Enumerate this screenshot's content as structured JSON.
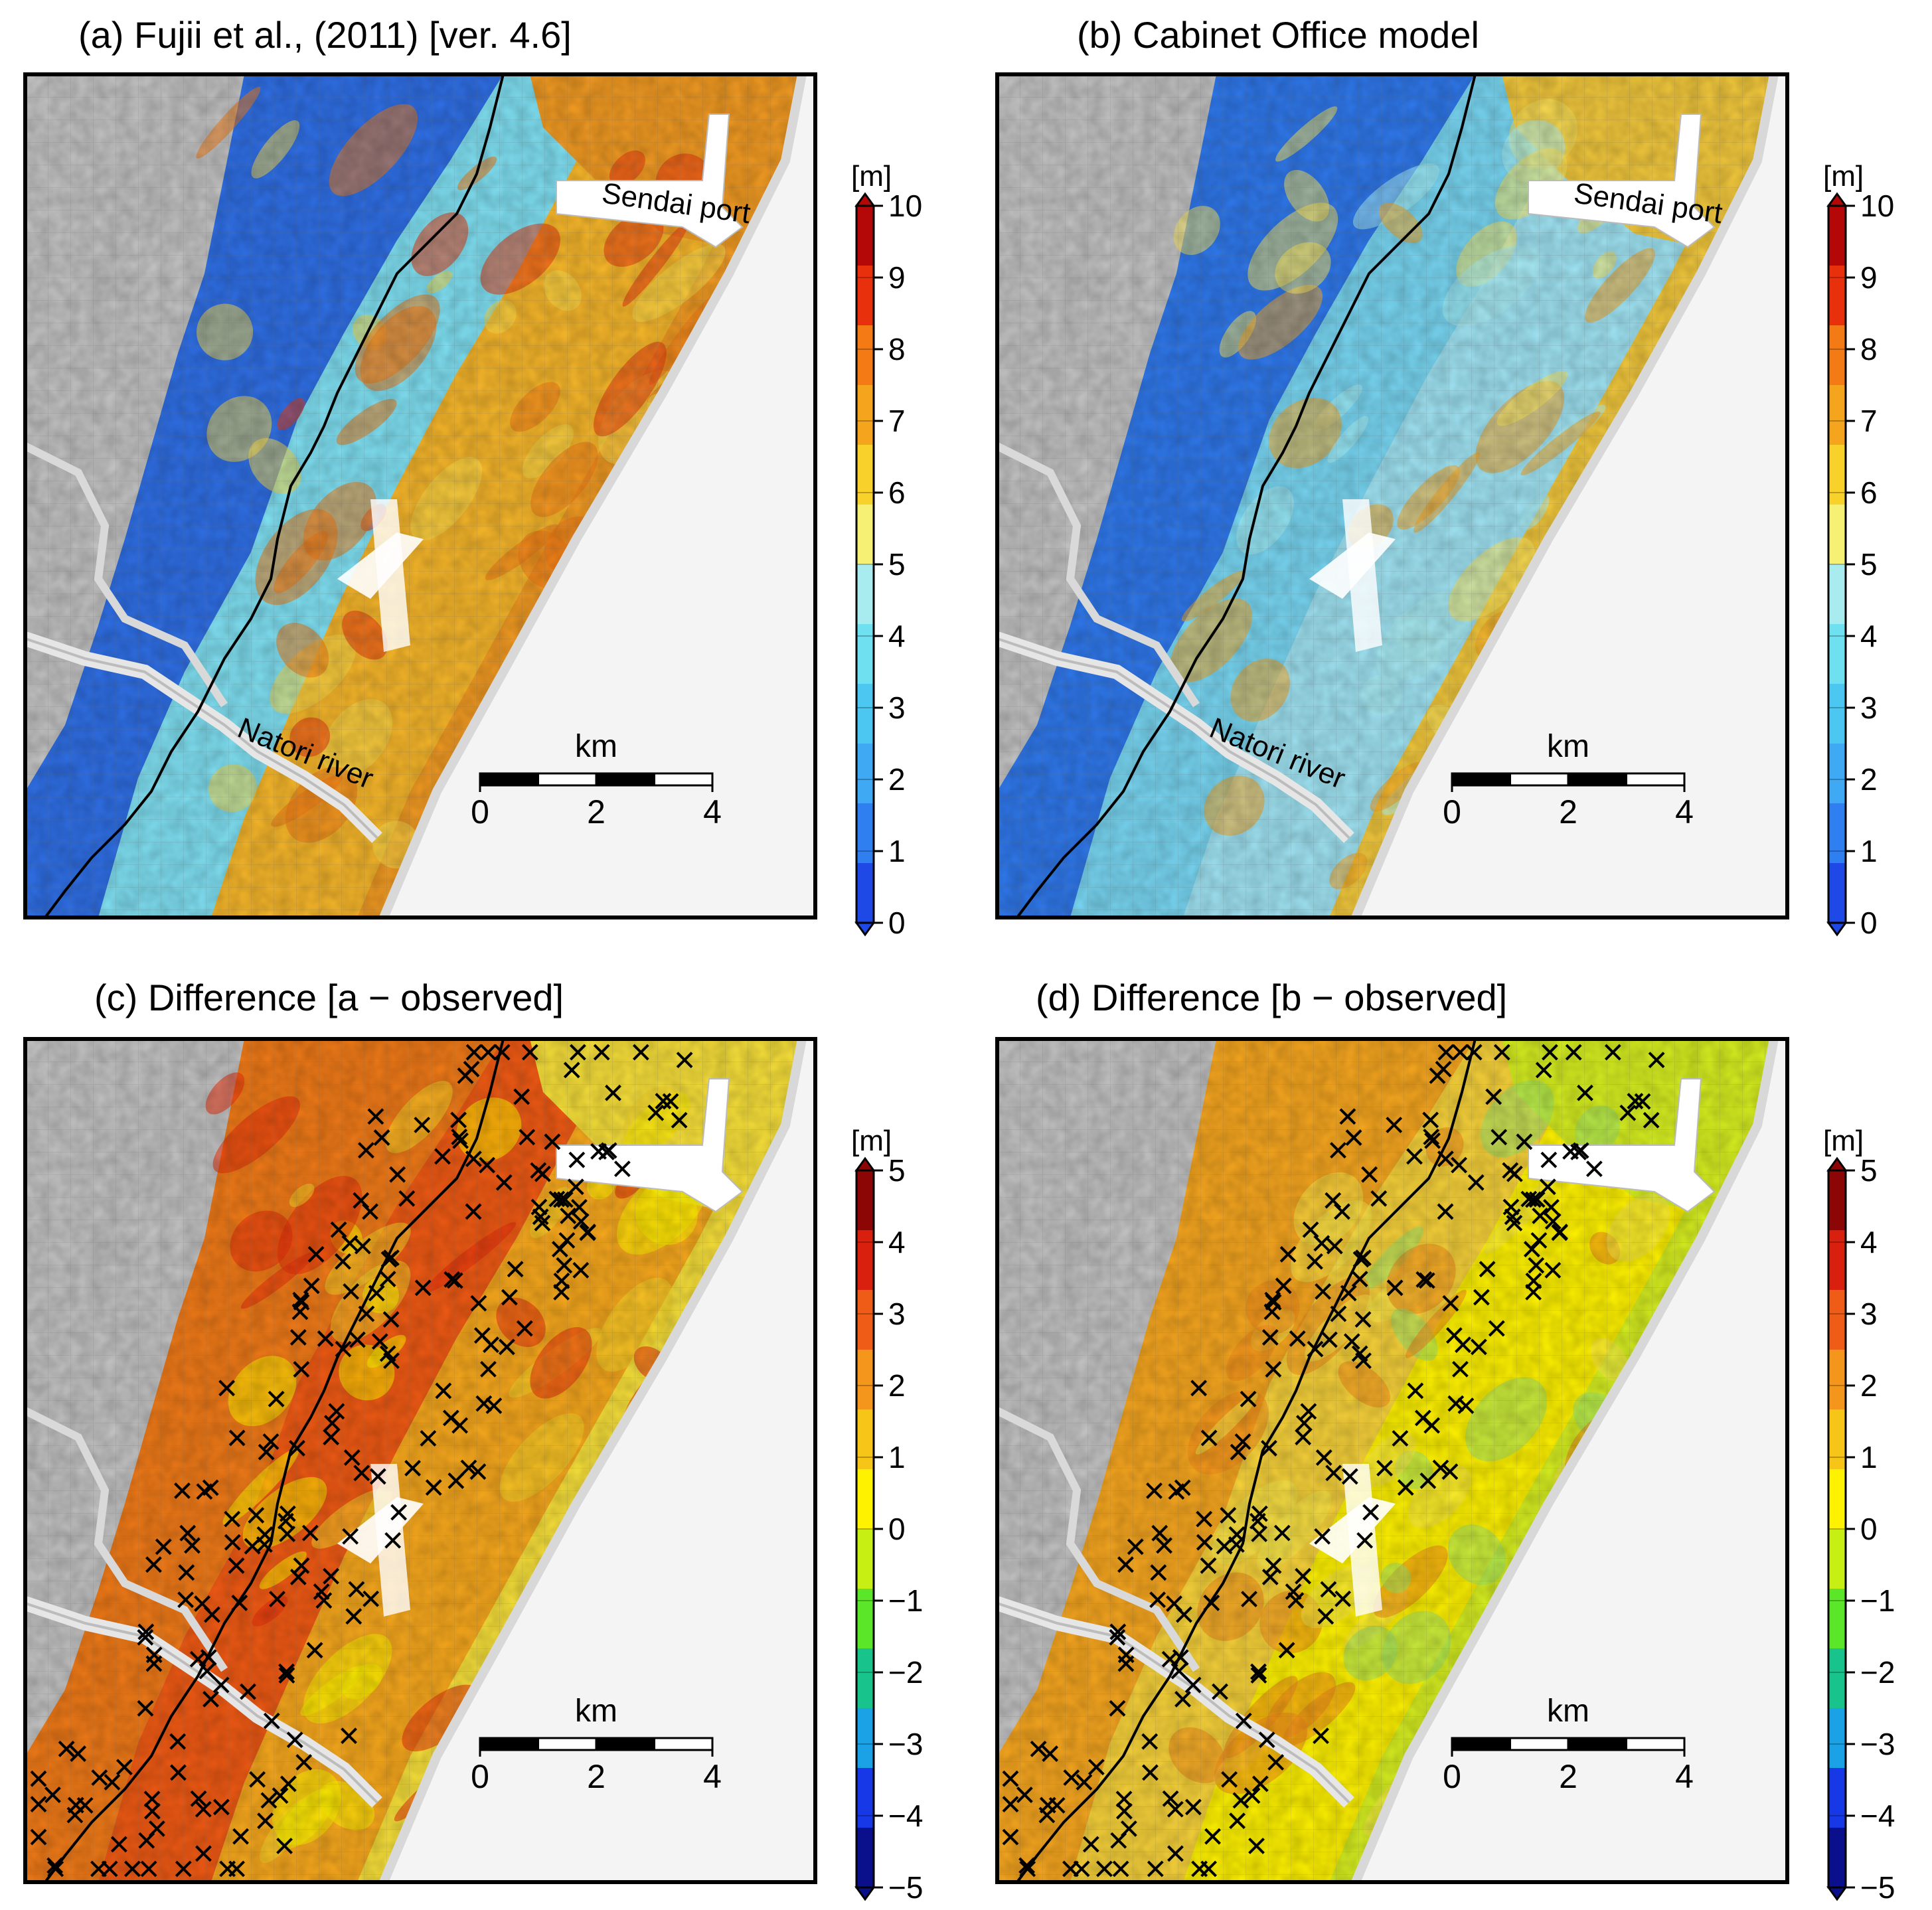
{
  "figure": {
    "panels": [
      {
        "id": "a",
        "title": "(a) Fujii et al., (2011) [ver. 4.6]",
        "kind": "inundation",
        "labels": {
          "port": "Sendai port",
          "river": "Natori river"
        },
        "has_observations": false
      },
      {
        "id": "b",
        "title": "(b) Cabinet Office model",
        "kind": "inundation-low",
        "labels": {
          "port": "Sendai port",
          "river": "Natori river"
        },
        "has_observations": false
      },
      {
        "id": "c",
        "title": "(c) Difference [a − observed]",
        "kind": "difference-high",
        "labels": {
          "port": "",
          "river": ""
        },
        "has_observations": true
      },
      {
        "id": "d",
        "title": "(d) Difference [b − observed]",
        "kind": "difference-low",
        "labels": {
          "port": "",
          "river": ""
        },
        "has_observations": true
      }
    ],
    "scalebar": {
      "title": "km",
      "ticks": [
        "0",
        "2",
        "4"
      ]
    },
    "colorbars": {
      "inundation": {
        "unit": "[m]",
        "min": 0,
        "max": 10,
        "tick_labels": [
          "0",
          "1",
          "2",
          "3",
          "4",
          "5",
          "6",
          "7",
          "8",
          "9",
          "10"
        ],
        "colors": [
          "#1f49e6",
          "#2f7ff0",
          "#3fa9f3",
          "#4cc7f2",
          "#6ee0f0",
          "#a9ecf0",
          "#f6f075",
          "#f8d22b",
          "#f5a51d",
          "#f37a14",
          "#e8300d",
          "#b40808"
        ]
      },
      "difference": {
        "unit": "[m]",
        "min": -5,
        "max": 5,
        "tick_labels": [
          "−5",
          "−4",
          "−3",
          "−2",
          "−1",
          "0",
          "1",
          "2",
          "3",
          "4",
          "5"
        ],
        "colors": [
          "#0a0f8c",
          "#1638e6",
          "#1aa1e6",
          "#19c38c",
          "#5ce62a",
          "#c7ef14",
          "#fff200",
          "#f7c418",
          "#f4951c",
          "#ef5c18",
          "#d9200f",
          "#8c0606"
        ]
      }
    },
    "colors": {
      "land_shade": "#c8c8c8",
      "frame": "#000000",
      "coast": "#f4f4f4"
    }
  }
}
